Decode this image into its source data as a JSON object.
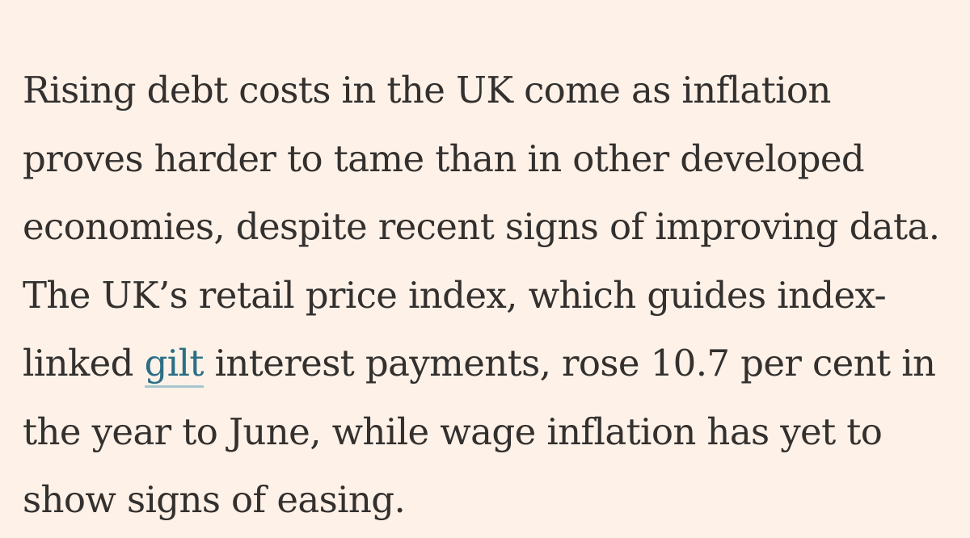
{
  "article": {
    "lines": [
      "Rising debt costs in the UK come as inflation",
      "proves harder to tame than in other developed",
      "economies, despite recent signs of improving data.",
      "The UK’s retail price index, which guides index-"
    ],
    "line5_before": "linked ",
    "line5_link": "gilt",
    "line5_after": " interest payments, rose 10.7 per cent in",
    "lines_end": [
      "the year to June, while wage inflation has yet to",
      "show signs of easing."
    ]
  },
  "colors": {
    "background": "#fdf1e8",
    "text": "#33302e",
    "link": "#2b6f86"
  }
}
